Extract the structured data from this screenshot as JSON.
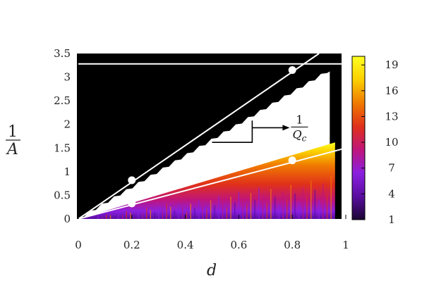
{
  "chart_data": {
    "type": "heatmap",
    "xlabel": "d",
    "ylabel_numerator": "1",
    "ylabel_denominator": "A",
    "xlim": [
      0,
      1
    ],
    "ylim": [
      0,
      3.5
    ],
    "xticks": [
      "0",
      "0.2",
      "0.4",
      "0.6",
      "0.8",
      "1"
    ],
    "xtick_values": [
      0,
      0.2,
      0.4,
      0.6,
      0.8,
      1
    ],
    "yticks": [
      "0",
      "0.5",
      "1",
      "1.5",
      "2",
      "2.5",
      "3",
      "3.5"
    ],
    "ytick_values": [
      0,
      0.5,
      1,
      1.5,
      2,
      2.5,
      3,
      3.5
    ],
    "colorbar": {
      "ticks": [
        "1",
        "4",
        "7",
        "10",
        "13",
        "16",
        "19"
      ],
      "tick_values": [
        1,
        4,
        7,
        10,
        13,
        16,
        19
      ],
      "range": [
        1,
        20
      ],
      "colors": [
        "#1a0533",
        "#5a0da0",
        "#8b1fe0",
        "#c0157a",
        "#e0301a",
        "#f07a00",
        "#fbd000",
        "#ffff20"
      ]
    },
    "regions": [
      {
        "name": "black",
        "description_free": true,
        "color": "#000000"
      },
      {
        "name": "white",
        "color": "#ffffff"
      }
    ],
    "lines": [
      {
        "kind": "horizontal",
        "y": 3.28,
        "x_range": [
          0,
          1
        ],
        "color": "#ffffff"
      },
      {
        "kind": "line",
        "points": [
          [
            0,
            0
          ],
          [
            0.9,
            3.5
          ]
        ],
        "color": "#ffffff"
      },
      {
        "kind": "line",
        "points": [
          [
            0,
            0
          ],
          [
            1,
            1.5
          ]
        ],
        "color": "#ffffff"
      }
    ],
    "markers": [
      {
        "x": 0.2,
        "y": 0.82
      },
      {
        "x": 0.2,
        "y": 0.33
      },
      {
        "x": 0.8,
        "y": 3.15
      },
      {
        "x": 0.8,
        "y": 1.24
      }
    ],
    "annotation": {
      "numerator": "1",
      "denominator": "Q",
      "subscript": "c",
      "bracket_x": [
        0.5,
        0.65
      ],
      "bracket_y": [
        1.62,
        2.08
      ],
      "arrow_to_x": 0.79
    }
  }
}
